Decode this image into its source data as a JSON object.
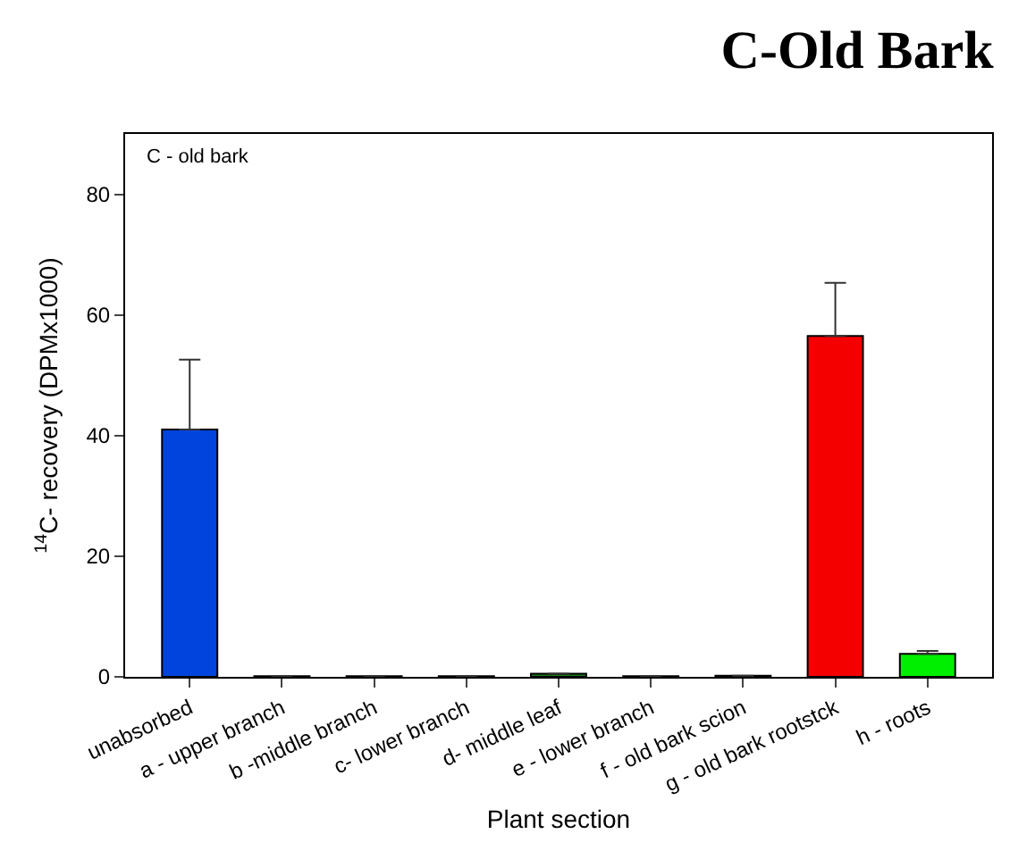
{
  "chart_data": {
    "type": "bar",
    "title": "C-Old Bark",
    "annotations": [
      "C - old bark"
    ],
    "xlabel": "Plant section",
    "ylabel": "$^{14}$C- recovery (DPMx1000)",
    "categories": [
      "unabsorbed",
      "a - upper branch",
      "b -middle branch",
      "c- lower branch",
      "d- middle leaf",
      "e - lower branch",
      "f - old bark scion",
      "g - old bark rootstck",
      "h - roots"
    ],
    "values": [
      41,
      0.1,
      0.1,
      0.1,
      0.5,
      0.1,
      0.2,
      56.5,
      3.8
    ],
    "colors": [
      "#0044dd",
      "#1a7a1a",
      "#1a7a1a",
      "#1a7a1a",
      "#1a7a1a",
      "#1a7a1a",
      "#1a7a1a",
      "#f50000",
      "#00ee00"
    ],
    "errors": [
      [
        41,
        52.6
      ],
      null,
      null,
      null,
      null,
      null,
      null,
      [
        56.5,
        65.3
      ],
      [
        3.8,
        4.3
      ]
    ],
    "ylim": [
      0,
      90
    ],
    "yticks": [
      0,
      20,
      40,
      60,
      80
    ]
  }
}
